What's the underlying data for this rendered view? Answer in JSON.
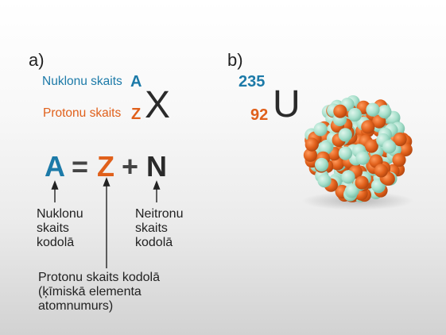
{
  "panel_a": {
    "label": "a)",
    "notation": {
      "mass_label": "Nuklonu skaits",
      "mass_symbol": "A",
      "atomic_label": "Protonu skaits",
      "atomic_symbol": "Z",
      "element_symbol": "X"
    },
    "equation": {
      "a": "A",
      "equals": "=",
      "z": "Z",
      "plus": "+",
      "n": "N"
    },
    "captions": {
      "a": "Nuklonu\nskaits\nkodolā",
      "n": "Neitronu\nskaits\nkodolā",
      "z": "Protonu skaits kodolā\n(ķīmiskā elementa\natomnumurs)"
    }
  },
  "panel_b": {
    "label": "b)",
    "mass_number": "235",
    "atomic_number": "92",
    "element_symbol": "U"
  },
  "colors": {
    "blue": "#1c7aa8",
    "orange": "#e0601b",
    "neutron": "#a8e0cc",
    "dark": "#2a2a2a"
  }
}
